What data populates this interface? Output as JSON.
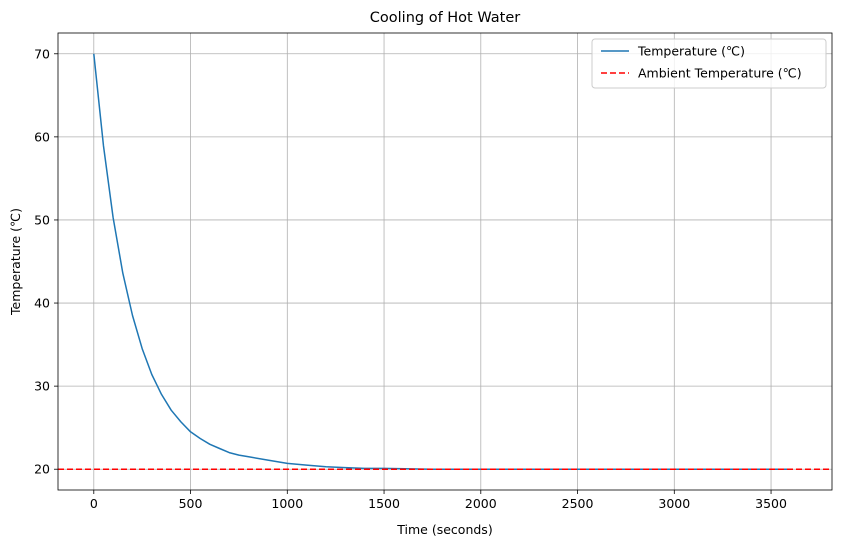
{
  "chart_data": {
    "type": "line",
    "title": "Cooling of Hot Water",
    "xlabel": "Time (seconds)",
    "ylabel": "Temperature (℃)",
    "xlim": [
      -185,
      3815
    ],
    "ylim": [
      17.5,
      72.5
    ],
    "xticks": [
      0,
      500,
      1000,
      1500,
      2000,
      2500,
      3000,
      3500
    ],
    "yticks": [
      20,
      30,
      40,
      50,
      60,
      70
    ],
    "grid": true,
    "legend_position": "top-right",
    "series": [
      {
        "name": "Temperature (℃)",
        "color": "#1f77b4",
        "style": "solid",
        "x": [
          0,
          50,
          100,
          150,
          200,
          250,
          300,
          350,
          400,
          450,
          500,
          550,
          600,
          650,
          700,
          750,
          800,
          900,
          1000,
          1100,
          1200,
          1300,
          1400,
          1500,
          1750,
          2000,
          2500,
          3000,
          3600
        ],
        "y": [
          70.0,
          58.9,
          50.3,
          43.6,
          38.5,
          34.5,
          31.4,
          29.0,
          27.1,
          25.7,
          24.5,
          23.7,
          23.0,
          22.5,
          22.0,
          21.7,
          21.5,
          21.1,
          20.7,
          20.5,
          20.3,
          20.2,
          20.1,
          20.1,
          20.0,
          20.0,
          20.0,
          20.0,
          20.0
        ]
      },
      {
        "name": "Ambient Temperature (℃)",
        "color": "#ff0000",
        "style": "dashed",
        "x": [
          -185,
          3815
        ],
        "y": [
          20,
          20
        ]
      }
    ]
  }
}
